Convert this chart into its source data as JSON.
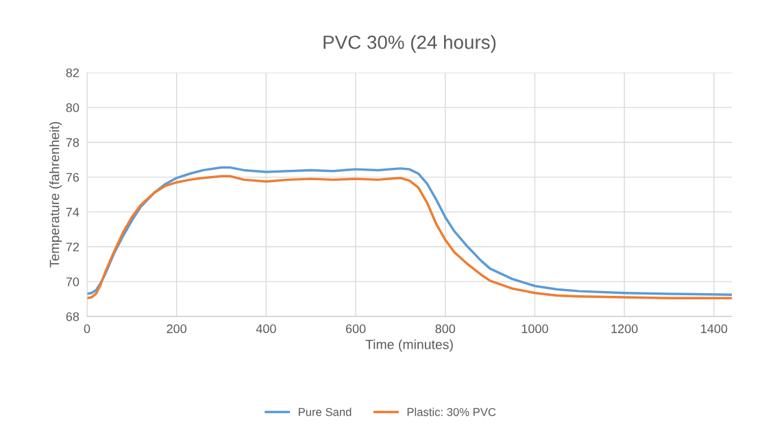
{
  "chart_data": {
    "type": "line",
    "title": "PVC 30% (24 hours)",
    "xlabel": "Time (minutes)",
    "ylabel": "Temperature (fahrenheit)",
    "x": [
      0,
      10,
      20,
      30,
      40,
      60,
      80,
      100,
      120,
      150,
      175,
      200,
      230,
      260,
      300,
      320,
      350,
      400,
      450,
      500,
      550,
      600,
      650,
      700,
      720,
      740,
      760,
      780,
      800,
      820,
      850,
      880,
      900,
      950,
      1000,
      1050,
      1100,
      1200,
      1300,
      1440
    ],
    "series": [
      {
        "name": "Pure Sand",
        "color": "#5b9bd5",
        "values": [
          69.3,
          69.35,
          69.5,
          69.9,
          70.4,
          71.6,
          72.6,
          73.5,
          74.3,
          75.1,
          75.6,
          75.95,
          76.2,
          76.4,
          76.55,
          76.55,
          76.4,
          76.3,
          76.35,
          76.4,
          76.35,
          76.45,
          76.4,
          76.5,
          76.45,
          76.2,
          75.6,
          74.7,
          73.7,
          72.9,
          72.0,
          71.2,
          70.75,
          70.15,
          69.75,
          69.55,
          69.45,
          69.35,
          69.3,
          69.25
        ]
      },
      {
        "name": "Plastic: 30% PVC",
        "color": "#ed7d31",
        "values": [
          69.05,
          69.1,
          69.3,
          69.8,
          70.5,
          71.7,
          72.8,
          73.7,
          74.4,
          75.1,
          75.5,
          75.7,
          75.85,
          75.95,
          76.05,
          76.05,
          75.85,
          75.75,
          75.85,
          75.9,
          75.85,
          75.9,
          75.85,
          75.95,
          75.8,
          75.4,
          74.5,
          73.3,
          72.4,
          71.7,
          71.0,
          70.4,
          70.05,
          69.6,
          69.35,
          69.2,
          69.15,
          69.1,
          69.05,
          69.05
        ]
      }
    ],
    "xlim": [
      0,
      1440
    ],
    "xticks": [
      0,
      200,
      400,
      600,
      800,
      1000,
      1200,
      1400
    ],
    "ylim": [
      68,
      82
    ],
    "yticks": [
      68,
      70,
      72,
      74,
      76,
      78,
      80,
      82
    ],
    "grid": true,
    "legend": "bottom",
    "marker": "none",
    "line_style": "solid"
  }
}
